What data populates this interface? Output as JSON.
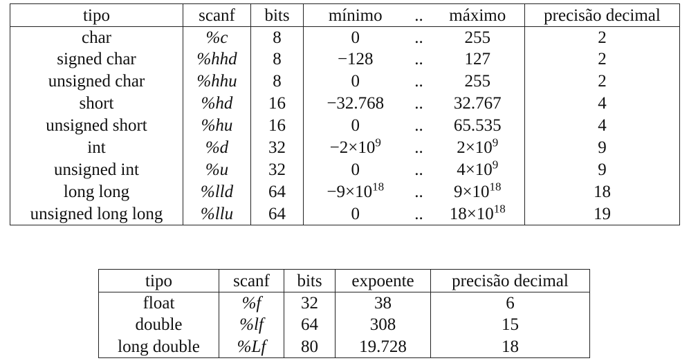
{
  "integer_table": {
    "headers": [
      "tipo",
      "scanf",
      "bits",
      "mínimo",
      "..",
      "máximo",
      "precisão decimal"
    ],
    "rows": [
      {
        "tipo": "char",
        "scanf": "%c",
        "bits": "8",
        "min": "0",
        "dots": "..",
        "max": "255",
        "precision": "2"
      },
      {
        "tipo": "signed char",
        "scanf": "%hhd",
        "bits": "8",
        "min": "−128",
        "dots": "..",
        "max": "127",
        "precision": "2"
      },
      {
        "tipo": "unsigned char",
        "scanf": "%hhu",
        "bits": "8",
        "min": "0",
        "dots": "..",
        "max": "255",
        "precision": "2"
      },
      {
        "tipo": "short",
        "scanf": "%hd",
        "bits": "16",
        "min": "−32.768",
        "dots": "..",
        "max": "32.767",
        "precision": "4"
      },
      {
        "tipo": "unsigned short",
        "scanf": "%hu",
        "bits": "16",
        "min": "0",
        "dots": "..",
        "max": "65.535",
        "precision": "4"
      },
      {
        "tipo": "int",
        "scanf": "%d",
        "bits": "32",
        "min": "−2×10",
        "min_exp": "9",
        "dots": "..",
        "max": "2×10",
        "max_exp": "9",
        "precision": "9"
      },
      {
        "tipo": "unsigned int",
        "scanf": "%u",
        "bits": "32",
        "min": "0",
        "dots": "..",
        "max": "4×10",
        "max_exp": "9",
        "precision": "9"
      },
      {
        "tipo": "long long",
        "scanf": "%lld",
        "bits": "64",
        "min": "−9×10",
        "min_exp": "18",
        "dots": "..",
        "max": "9×10",
        "max_exp": "18",
        "precision": "18"
      },
      {
        "tipo": "unsigned long long",
        "scanf": "%llu",
        "bits": "64",
        "min": "0",
        "dots": "..",
        "max": "18×10",
        "max_exp": "18",
        "precision": "19"
      }
    ]
  },
  "float_table": {
    "headers": [
      "tipo",
      "scanf",
      "bits",
      "expoente",
      "precisão decimal"
    ],
    "rows": [
      {
        "tipo": "float",
        "scanf": "%f",
        "bits": "32",
        "exponent": "38",
        "precision": "6"
      },
      {
        "tipo": "double",
        "scanf": "%lf",
        "bits": "64",
        "exponent": "308",
        "precision": "15"
      },
      {
        "tipo": "long double",
        "scanf": "%Lf",
        "bits": "80",
        "exponent": "19.728",
        "precision": "18"
      }
    ]
  }
}
